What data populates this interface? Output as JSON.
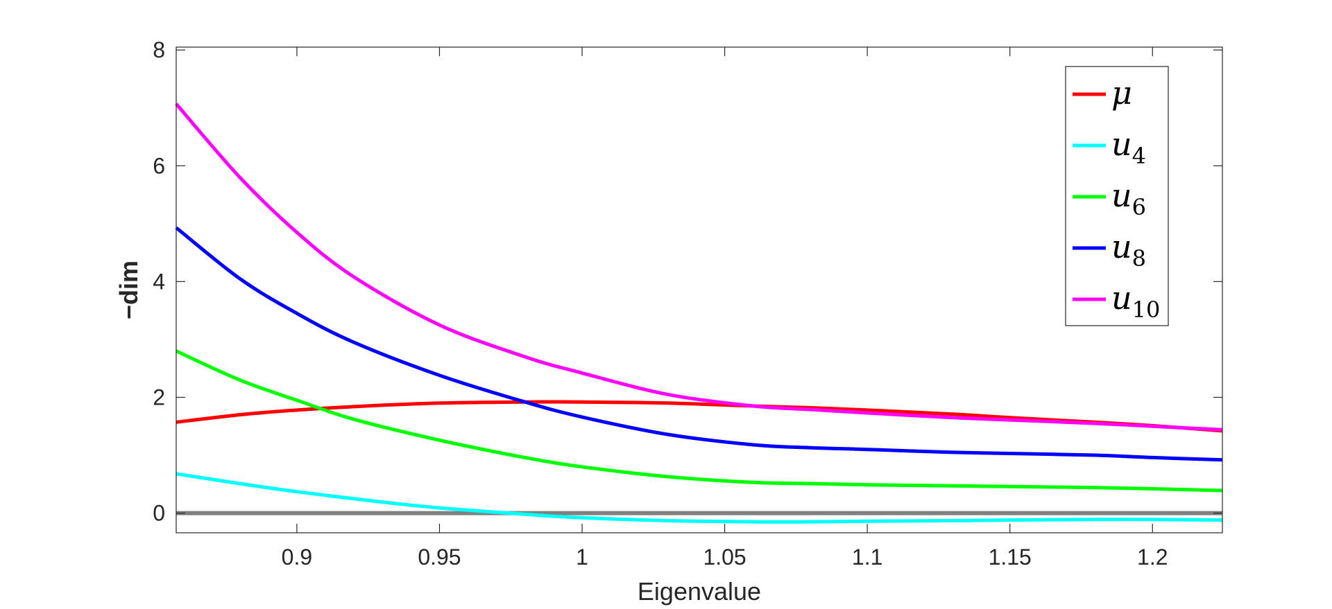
{
  "chart_data": {
    "type": "line",
    "title": "",
    "xlabel": "Eigenvalue",
    "ylabel": "−dim",
    "xlim": [
      0.8577,
      1.2245
    ],
    "ylim": [
      -0.34,
      8.05
    ],
    "xticks": [
      0.9,
      0.95,
      1,
      1.05,
      1.1,
      1.15,
      1.2
    ],
    "xtick_labels": [
      "0.9",
      "0.95",
      "1",
      "1.05",
      "1.1",
      "1.15",
      "1.2"
    ],
    "yticks": [
      0,
      2,
      4,
      6,
      8
    ],
    "ytick_labels": [
      "0",
      "2",
      "4",
      "6",
      "8"
    ],
    "grid": false,
    "legend_position": "top-right",
    "reference_line": {
      "y": 0,
      "color": "#808080"
    },
    "series": [
      {
        "name": "μ",
        "label_main": "μ",
        "label_sub": "",
        "color": "#ff0000",
        "x": [
          0.8577,
          0.88,
          0.9,
          0.92,
          0.95,
          0.98,
          1.0,
          1.03,
          1.06,
          1.08,
          1.1,
          1.13,
          1.15,
          1.18,
          1.2,
          1.2245
        ],
        "y": [
          1.57,
          1.7,
          1.78,
          1.84,
          1.9,
          1.92,
          1.92,
          1.9,
          1.85,
          1.82,
          1.78,
          1.71,
          1.65,
          1.57,
          1.51,
          1.42
        ]
      },
      {
        "name": "u4",
        "label_main": "u",
        "label_sub": "4",
        "color": "#00ffff",
        "x": [
          0.8577,
          0.88,
          0.9,
          0.93,
          0.95,
          0.98,
          1.0,
          1.03,
          1.06,
          1.08,
          1.1,
          1.13,
          1.15,
          1.18,
          1.2,
          1.2245
        ],
        "y": [
          0.68,
          0.51,
          0.37,
          0.19,
          0.09,
          -0.02,
          -0.08,
          -0.13,
          -0.15,
          -0.15,
          -0.14,
          -0.13,
          -0.12,
          -0.11,
          -0.11,
          -0.12
        ]
      },
      {
        "name": "u6",
        "label_main": "u",
        "label_sub": "6",
        "color": "#00ff00",
        "x": [
          0.8577,
          0.88,
          0.9,
          0.92,
          0.95,
          0.98,
          1.0,
          1.03,
          1.06,
          1.08,
          1.1,
          1.13,
          1.15,
          1.18,
          1.2,
          1.2245
        ],
        "y": [
          2.8,
          2.3,
          1.95,
          1.62,
          1.26,
          0.96,
          0.8,
          0.63,
          0.53,
          0.51,
          0.49,
          0.47,
          0.46,
          0.44,
          0.42,
          0.39
        ]
      },
      {
        "name": "u8",
        "label_main": "u",
        "label_sub": "8",
        "color": "#0000ff",
        "x": [
          0.8577,
          0.88,
          0.9,
          0.92,
          0.95,
          0.98,
          1.0,
          1.03,
          1.06,
          1.08,
          1.1,
          1.13,
          1.15,
          1.18,
          1.2,
          1.2245
        ],
        "y": [
          4.93,
          4.05,
          3.45,
          2.95,
          2.38,
          1.92,
          1.66,
          1.36,
          1.18,
          1.13,
          1.1,
          1.05,
          1.03,
          1.0,
          0.96,
          0.92
        ]
      },
      {
        "name": "u10",
        "label_main": "u",
        "label_sub": "10",
        "color": "#ff00ff",
        "x": [
          0.8577,
          0.88,
          0.9,
          0.92,
          0.95,
          0.98,
          1.0,
          1.03,
          1.06,
          1.08,
          1.1,
          1.13,
          1.15,
          1.18,
          1.2,
          1.2245
        ],
        "y": [
          7.07,
          5.8,
          4.85,
          4.08,
          3.25,
          2.7,
          2.42,
          2.05,
          1.85,
          1.79,
          1.73,
          1.65,
          1.61,
          1.55,
          1.5,
          1.44
        ]
      }
    ]
  }
}
